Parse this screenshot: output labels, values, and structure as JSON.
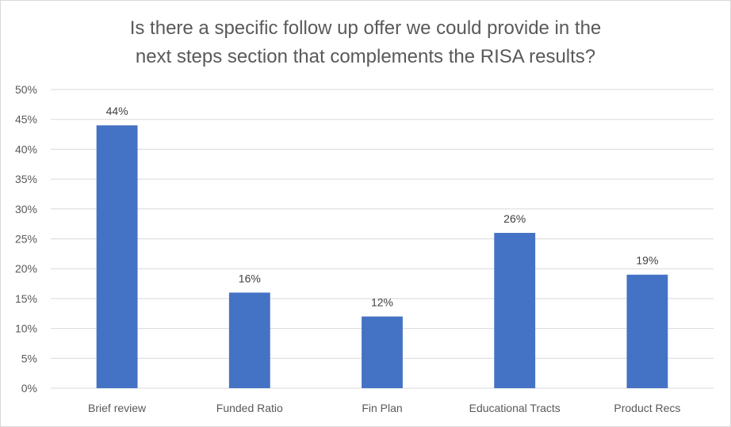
{
  "chart_data": {
    "type": "bar",
    "title_line1": "Is there a specific follow up offer we could provide in the",
    "title_line2": "next steps section that complements the RISA results?",
    "categories": [
      "Brief review",
      "Funded Ratio",
      "Fin Plan",
      "Educational Tracts",
      "Product Recs"
    ],
    "values": [
      44,
      16,
      12,
      26,
      19
    ],
    "data_labels": [
      "44%",
      "16%",
      "12%",
      "26%",
      "19%"
    ],
    "y_ticks": [
      "0%",
      "5%",
      "10%",
      "15%",
      "20%",
      "25%",
      "30%",
      "35%",
      "40%",
      "45%",
      "50%"
    ],
    "ylim": [
      0,
      50
    ],
    "grid": true,
    "bar_color": "#4472c4",
    "grid_color": "#d9d9d9"
  }
}
